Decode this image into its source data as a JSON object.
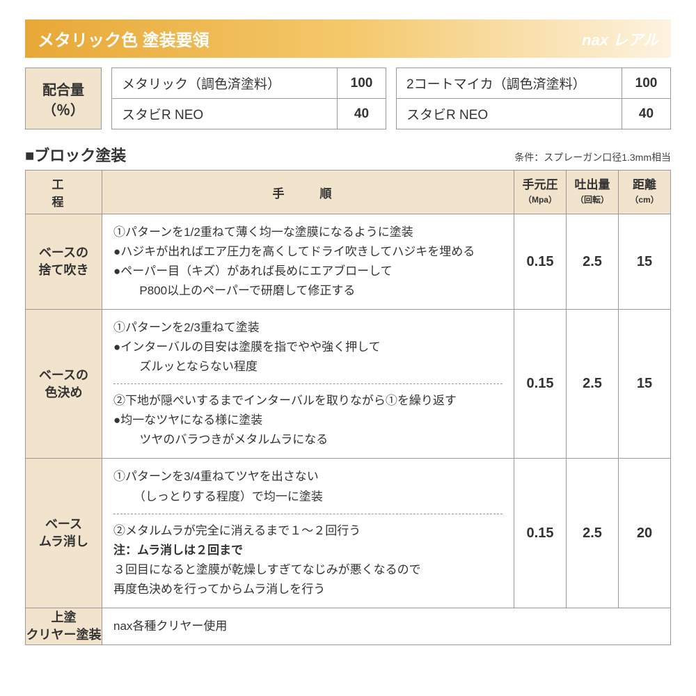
{
  "header": {
    "title": "メタリック色 塗装要領",
    "brand_prefix": "nax",
    "brand_name": "レアル"
  },
  "mix": {
    "label_line1": "配合量",
    "label_line2": "（％）",
    "left": [
      {
        "name": "メタリック（調色済塗料）",
        "value": "100"
      },
      {
        "name": "スタビR NEO",
        "value": "40"
      }
    ],
    "right": [
      {
        "name": "2コートマイカ（調色済塗料）",
        "value": "100"
      },
      {
        "name": "スタビR NEO",
        "value": "40"
      }
    ]
  },
  "section": {
    "title": "■ブロック塗装",
    "condition": "条件：スプレーガン口径1.3mm相当"
  },
  "columns": {
    "step": "工　程",
    "proc": "手　順",
    "pressure": "手元圧",
    "pressure_unit": "（Mpa）",
    "flow": "吐出量",
    "flow_unit": "（回転）",
    "distance": "距離",
    "distance_unit": "（cm）"
  },
  "rows": [
    {
      "label_l1": "ベースの",
      "label_l2": "捨て吹き",
      "lines": [
        "①パターンを1/2重ねて薄く均一な塗膜になるように塗装",
        "●ハジキが出ればエア圧力を高くしてドライ吹きしてハジキを埋める",
        "●ペーパー目（キズ）があれば長めにエアブローして",
        "　P800以上のペーパーで研磨して修正する"
      ],
      "pressure": "0.15",
      "flow": "2.5",
      "distance": "15"
    },
    {
      "label_l1": "ベースの",
      "label_l2": "色決め",
      "block1": [
        "①パターンを2/3重ねて塗装",
        "●インターバルの目安は塗膜を指でやや強く押して",
        "　ズルッとならない程度"
      ],
      "block2": [
        "②下地が隠ぺいするまでインターバルを取りながら①を繰り返す",
        "●均一なツヤになる様に塗装",
        "　ツヤのバラつきがメタルムラになる"
      ],
      "pressure": "0.15",
      "flow": "2.5",
      "distance": "15"
    },
    {
      "label_l1": "ベース",
      "label_l2": "ムラ消し",
      "block1": [
        "①パターンを3/4重ねてツヤを出さない",
        "　（しっとりする程度）で均一に塗装"
      ],
      "block2": [
        "②メタルムラが完全に消えるまで１～２回行う"
      ],
      "note_bold": "注：ムラ消しは２回まで",
      "note_lines": [
        "３回目になると塗膜が乾燥しすぎてなじみが悪くなるので",
        "再度色決めを行ってからムラ消しを行う"
      ],
      "pressure": "0.15",
      "flow": "2.5",
      "distance": "20"
    },
    {
      "label_l1": "上塗",
      "label_l2": "クリヤー塗装",
      "lines": [
        "nax各種クリヤー使用"
      ]
    }
  ]
}
